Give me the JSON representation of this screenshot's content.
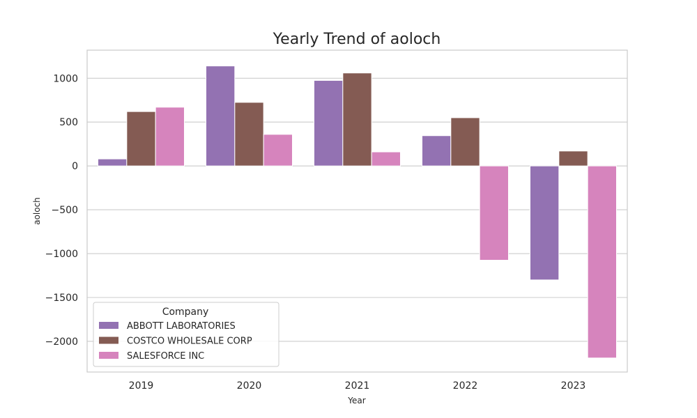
{
  "chart_data": {
    "type": "bar",
    "title": "Yearly Trend of aoloch",
    "xlabel": "Year",
    "ylabel": "aoloch",
    "categories": [
      "2019",
      "2020",
      "2021",
      "2022",
      "2023"
    ],
    "ylim": [
      -2350,
      1320
    ],
    "yticks": [
      -2000,
      -1500,
      -1000,
      -500,
      0,
      500,
      1000
    ],
    "ytick_labels": [
      "−2000",
      "−1500",
      "−1000",
      "−500",
      "0",
      "500",
      "1000"
    ],
    "grid": true,
    "legend": {
      "title": "Company",
      "placement": "lower-left"
    },
    "series": [
      {
        "name": "ABBOTT LABORATORIES",
        "color": "#9372b2",
        "values": [
          80,
          1140,
          975,
          345,
          -1300
        ]
      },
      {
        "name": "COSTCO WHOLESALE CORP",
        "color": "#845b53",
        "values": [
          620,
          725,
          1060,
          550,
          170
        ]
      },
      {
        "name": "SALESFORCE INC",
        "color": "#d684bd",
        "values": [
          670,
          360,
          160,
          -1075,
          -2190
        ]
      }
    ]
  }
}
